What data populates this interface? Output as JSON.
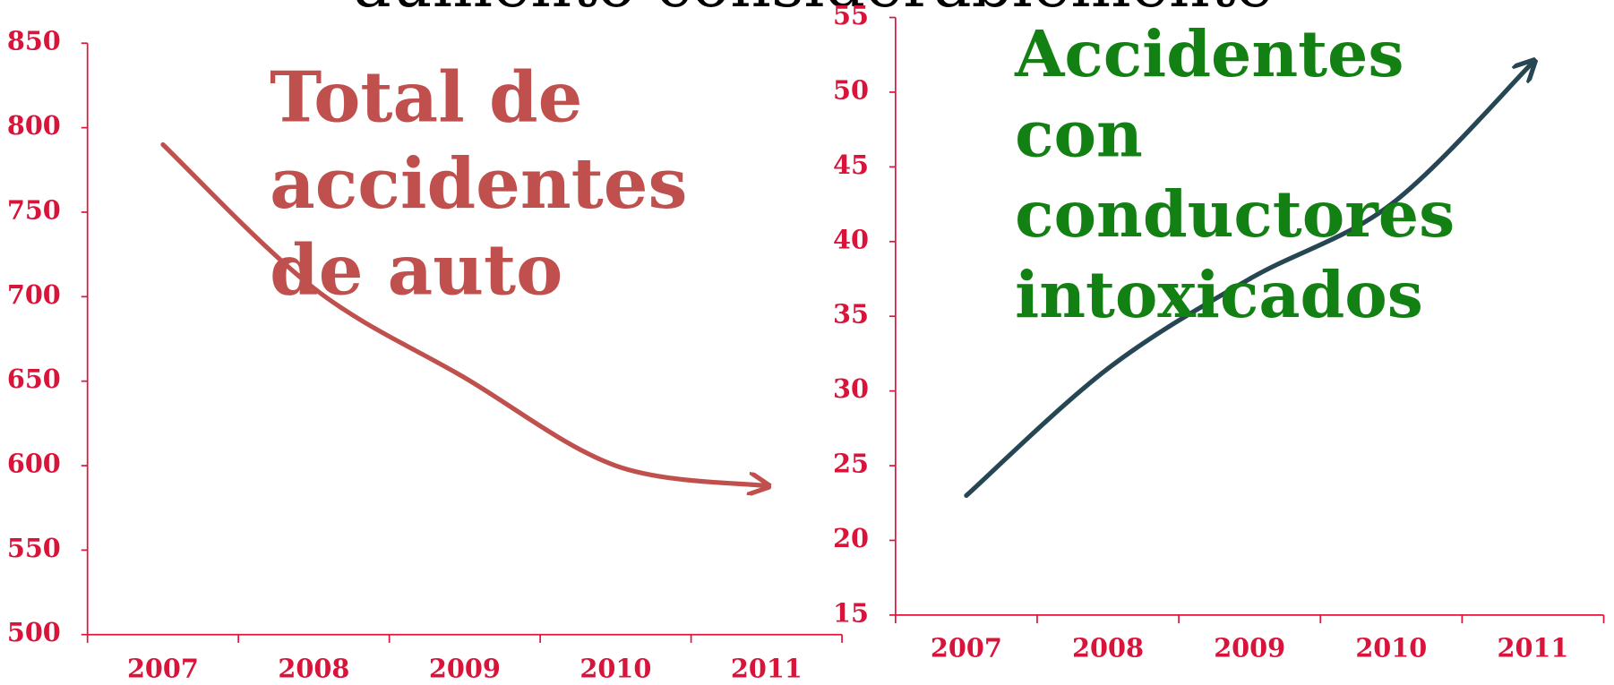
{
  "title": "aumento considerablemente",
  "chart_data": [
    {
      "type": "line",
      "categories": [
        "2007",
        "2008",
        "2009",
        "2010",
        "2011"
      ],
      "series": [
        {
          "name": "Total de accidentes de auto",
          "color": "#c0504d",
          "values": [
            790,
            705,
            652,
            600,
            588
          ]
        }
      ],
      "annotation_lines": [
        "Total de",
        "accidentes",
        "de auto"
      ],
      "annotation_color": "#c0504d",
      "ylim": [
        500,
        850
      ],
      "yticks": [
        500,
        550,
        600,
        650,
        700,
        750,
        800,
        850
      ],
      "grid": false,
      "axis_color": "#e0143c"
    },
    {
      "type": "line",
      "categories": [
        "2007",
        "2008",
        "2009",
        "2010",
        "2011"
      ],
      "series": [
        {
          "name": "Accidentes con conductores intoxicados",
          "color": "#264653",
          "values": [
            23,
            31.5,
            37.5,
            42.5,
            52
          ]
        }
      ],
      "annotation_lines": [
        "Accidentes",
        "con",
        "conductores",
        "intoxicados"
      ],
      "annotation_color": "#138013",
      "ylim": [
        15,
        55
      ],
      "yticks": [
        15,
        20,
        25,
        30,
        35,
        40,
        45,
        50,
        55
      ],
      "grid": false,
      "axis_color": "#e0143c"
    }
  ]
}
